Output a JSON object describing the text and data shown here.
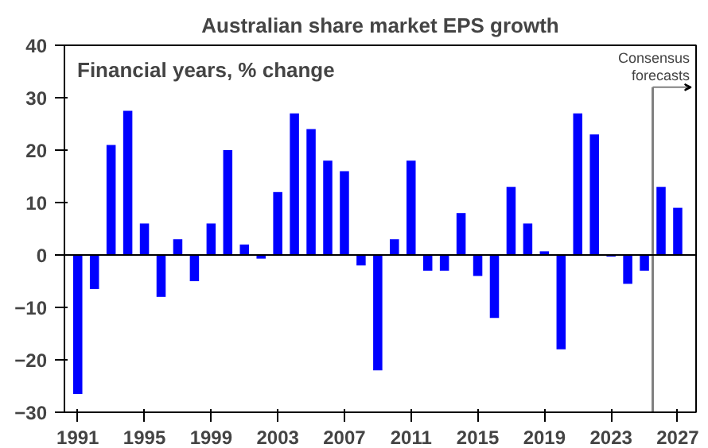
{
  "chart_data": {
    "type": "bar",
    "title": "Australian share market EPS growth",
    "subtitle": "Financial years, %  change",
    "x": [
      1991,
      1992,
      1993,
      1994,
      1995,
      1996,
      1997,
      1998,
      1999,
      2000,
      2001,
      2002,
      2003,
      2004,
      2005,
      2006,
      2007,
      2008,
      2009,
      2010,
      2011,
      2012,
      2013,
      2014,
      2015,
      2016,
      2017,
      2018,
      2019,
      2020,
      2021,
      2022,
      2023,
      2024,
      2025,
      2026,
      2027
    ],
    "series": [
      {
        "color": "#0000ff",
        "values": [
          -26.5,
          -6.5,
          21,
          27.5,
          6,
          -8,
          3,
          -5,
          6,
          20,
          2,
          -0.7,
          12,
          27,
          24,
          18,
          16,
          -2,
          -22,
          3,
          18,
          -3,
          -3,
          8,
          -4,
          -12,
          13,
          6,
          0.7,
          -18,
          27,
          23,
          -0.3,
          -5.5,
          -3,
          13,
          9
        ]
      }
    ],
    "xlim": [
      1990.2,
      2028.1
    ],
    "xticks": [
      1991,
      1995,
      1999,
      2003,
      2007,
      2011,
      2015,
      2019,
      2023,
      2027
    ],
    "ylim": [
      -30,
      40
    ],
    "yticks": [
      -30,
      -20,
      -10,
      0,
      10,
      20,
      30,
      40
    ],
    "ref_lines": [
      {
        "axis": "x",
        "value": 2025.5,
        "label": "Consensus forecasts",
        "color": "#808080"
      }
    ]
  }
}
